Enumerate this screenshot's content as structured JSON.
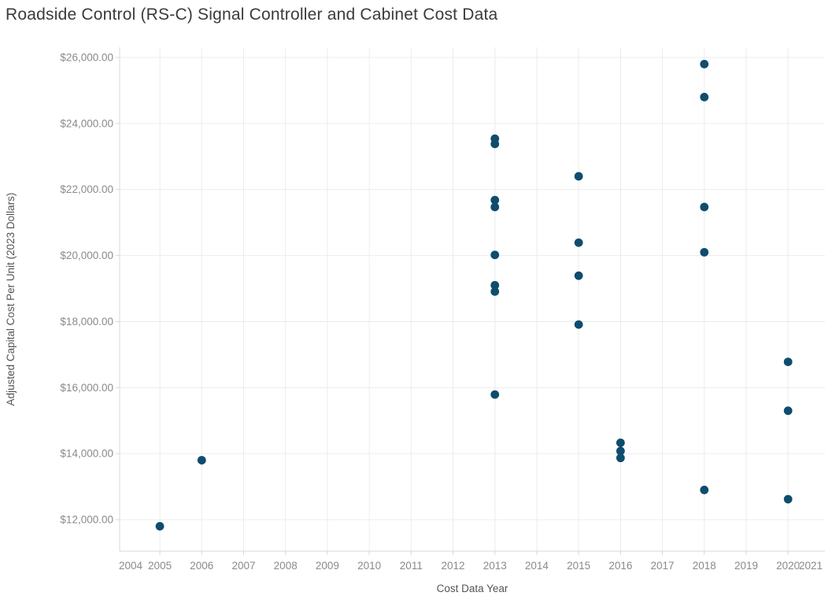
{
  "chart_data": {
    "type": "scatter",
    "title": "Roadside Control (RS-C) Signal Controller and Cabinet Cost Data",
    "xlabel": "Cost Data Year",
    "ylabel": "Adjusted Capital Cost Per Unit (2023 Dollars)",
    "x_ticks": [
      2004,
      2005,
      2006,
      2007,
      2008,
      2009,
      2010,
      2011,
      2012,
      2013,
      2014,
      2015,
      2016,
      2017,
      2018,
      2019,
      2020,
      2021
    ],
    "y_ticks": [
      12000,
      14000,
      16000,
      18000,
      20000,
      22000,
      24000,
      26000
    ],
    "y_tick_labels": [
      "$12,000.00",
      "$14,000.00",
      "$16,000.00",
      "$18,000.00",
      "$20,000.00",
      "$22,000.00",
      "$24,000.00",
      "$26,000.00"
    ],
    "xlim": [
      2004.04,
      2020.88
    ],
    "ylim": [
      11047,
      26310
    ],
    "grid": true,
    "legend": "none",
    "points": [
      {
        "x": 2005,
        "y": 11800
      },
      {
        "x": 2006,
        "y": 13800
      },
      {
        "x": 2013,
        "y": 23540
      },
      {
        "x": 2013,
        "y": 23380
      },
      {
        "x": 2013,
        "y": 21680
      },
      {
        "x": 2013,
        "y": 21470
      },
      {
        "x": 2013,
        "y": 20020
      },
      {
        "x": 2013,
        "y": 19100
      },
      {
        "x": 2013,
        "y": 18910
      },
      {
        "x": 2013,
        "y": 15790
      },
      {
        "x": 2015,
        "y": 22400
      },
      {
        "x": 2015,
        "y": 20390
      },
      {
        "x": 2015,
        "y": 19390
      },
      {
        "x": 2015,
        "y": 17910
      },
      {
        "x": 2016,
        "y": 14330
      },
      {
        "x": 2016,
        "y": 14080
      },
      {
        "x": 2016,
        "y": 13870
      },
      {
        "x": 2018,
        "y": 25800
      },
      {
        "x": 2018,
        "y": 24800
      },
      {
        "x": 2018,
        "y": 21470
      },
      {
        "x": 2018,
        "y": 20100
      },
      {
        "x": 2018,
        "y": 12900
      },
      {
        "x": 2020,
        "y": 16780
      },
      {
        "x": 2020,
        "y": 15300
      },
      {
        "x": 2020,
        "y": 12620
      }
    ],
    "colors": {
      "marker": "#0e4d6d",
      "gridline": "#ececec",
      "axis_line": "#d8d8d8",
      "tick": "#d8d8d8",
      "tick_label": "#8a8a8a",
      "axis_title": "#555555",
      "title": "#3b3b3b"
    },
    "marker_radius": 5.4
  }
}
